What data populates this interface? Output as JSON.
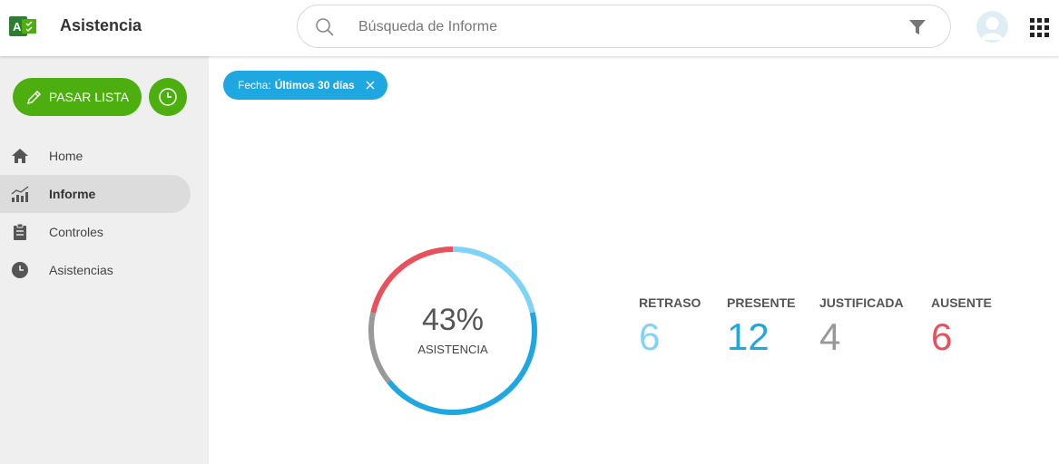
{
  "header": {
    "title": "Asistencia",
    "logo_letter": "A",
    "search": {
      "placeholder": "Búsqueda de Informe",
      "value": ""
    },
    "icons": [
      "app-logo-icon",
      "search-icon",
      "filter-icon",
      "avatar",
      "apps-grid-icon"
    ]
  },
  "sidebar": {
    "primary_button_label": "PASAR LISTA",
    "items": [
      {
        "label": "Home",
        "icon": "home-icon",
        "active": false
      },
      {
        "label": "Informe",
        "icon": "chart-icon",
        "active": true
      },
      {
        "label": "Controles",
        "icon": "clipboard-icon",
        "active": false
      },
      {
        "label": "Asistencias",
        "icon": "clock-icon",
        "active": false
      }
    ]
  },
  "filter_chip": {
    "label": "Fecha:",
    "value": "Últimos 30 días"
  },
  "summary": {
    "percent": "43%",
    "label": "ASISTENCIA",
    "stats": [
      {
        "label": "RETRASO",
        "value": "6",
        "color": "#7fd3f7"
      },
      {
        "label": "PRESENTE",
        "value": "12",
        "color": "#1fa7e1"
      },
      {
        "label": "JUSTIFICADA",
        "value": "4",
        "color": "#999999"
      },
      {
        "label": "AUSENTE",
        "value": "6",
        "color": "#e8505b"
      }
    ]
  },
  "colors": {
    "accent_green": "#4caf0f",
    "chip_blue": "#1fa7e1"
  }
}
